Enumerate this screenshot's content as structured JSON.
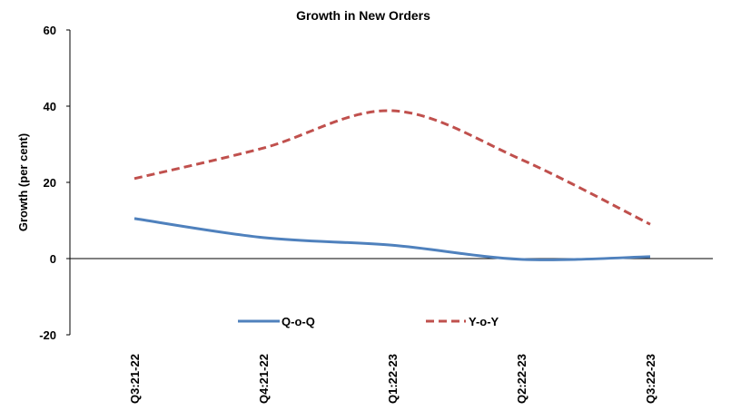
{
  "chart_data": {
    "type": "line",
    "title": "Growth in New Orders",
    "xlabel": "",
    "ylabel": "Growth (per cent)",
    "categories": [
      "Q3:21-22",
      "Q4:21-22",
      "Q1:22-23",
      "Q2:22-23",
      "Q3:22-23"
    ],
    "ylim": [
      -20,
      60
    ],
    "yticks": [
      -20,
      0,
      20,
      40,
      60
    ],
    "grid": false,
    "legend_position": "bottom-center",
    "series": [
      {
        "name": "Q-o-Q",
        "values": [
          10.5,
          5.5,
          3.5,
          -0.2,
          0.5
        ],
        "color": "#4f81bd",
        "style": "solid"
      },
      {
        "name": "Y-o-Y",
        "values": [
          21,
          29,
          38.8,
          26,
          9
        ],
        "color": "#c0504d",
        "style": "dashed"
      }
    ]
  }
}
